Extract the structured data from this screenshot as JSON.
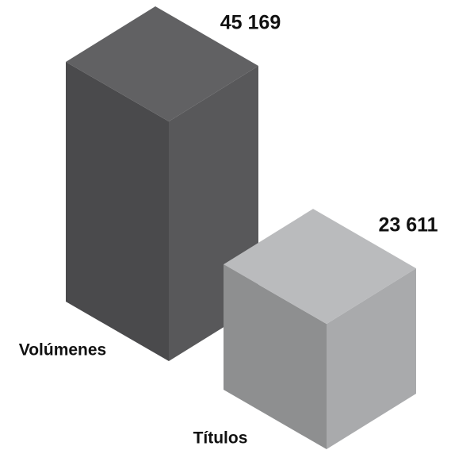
{
  "chart_data": {
    "type": "bar",
    "categories": [
      "Volúmenes",
      "Títulos"
    ],
    "values": [
      45169,
      23611
    ],
    "value_labels": [
      "45 169",
      "23 611"
    ],
    "colors": [
      "#58585a",
      "#a9aaac"
    ]
  }
}
